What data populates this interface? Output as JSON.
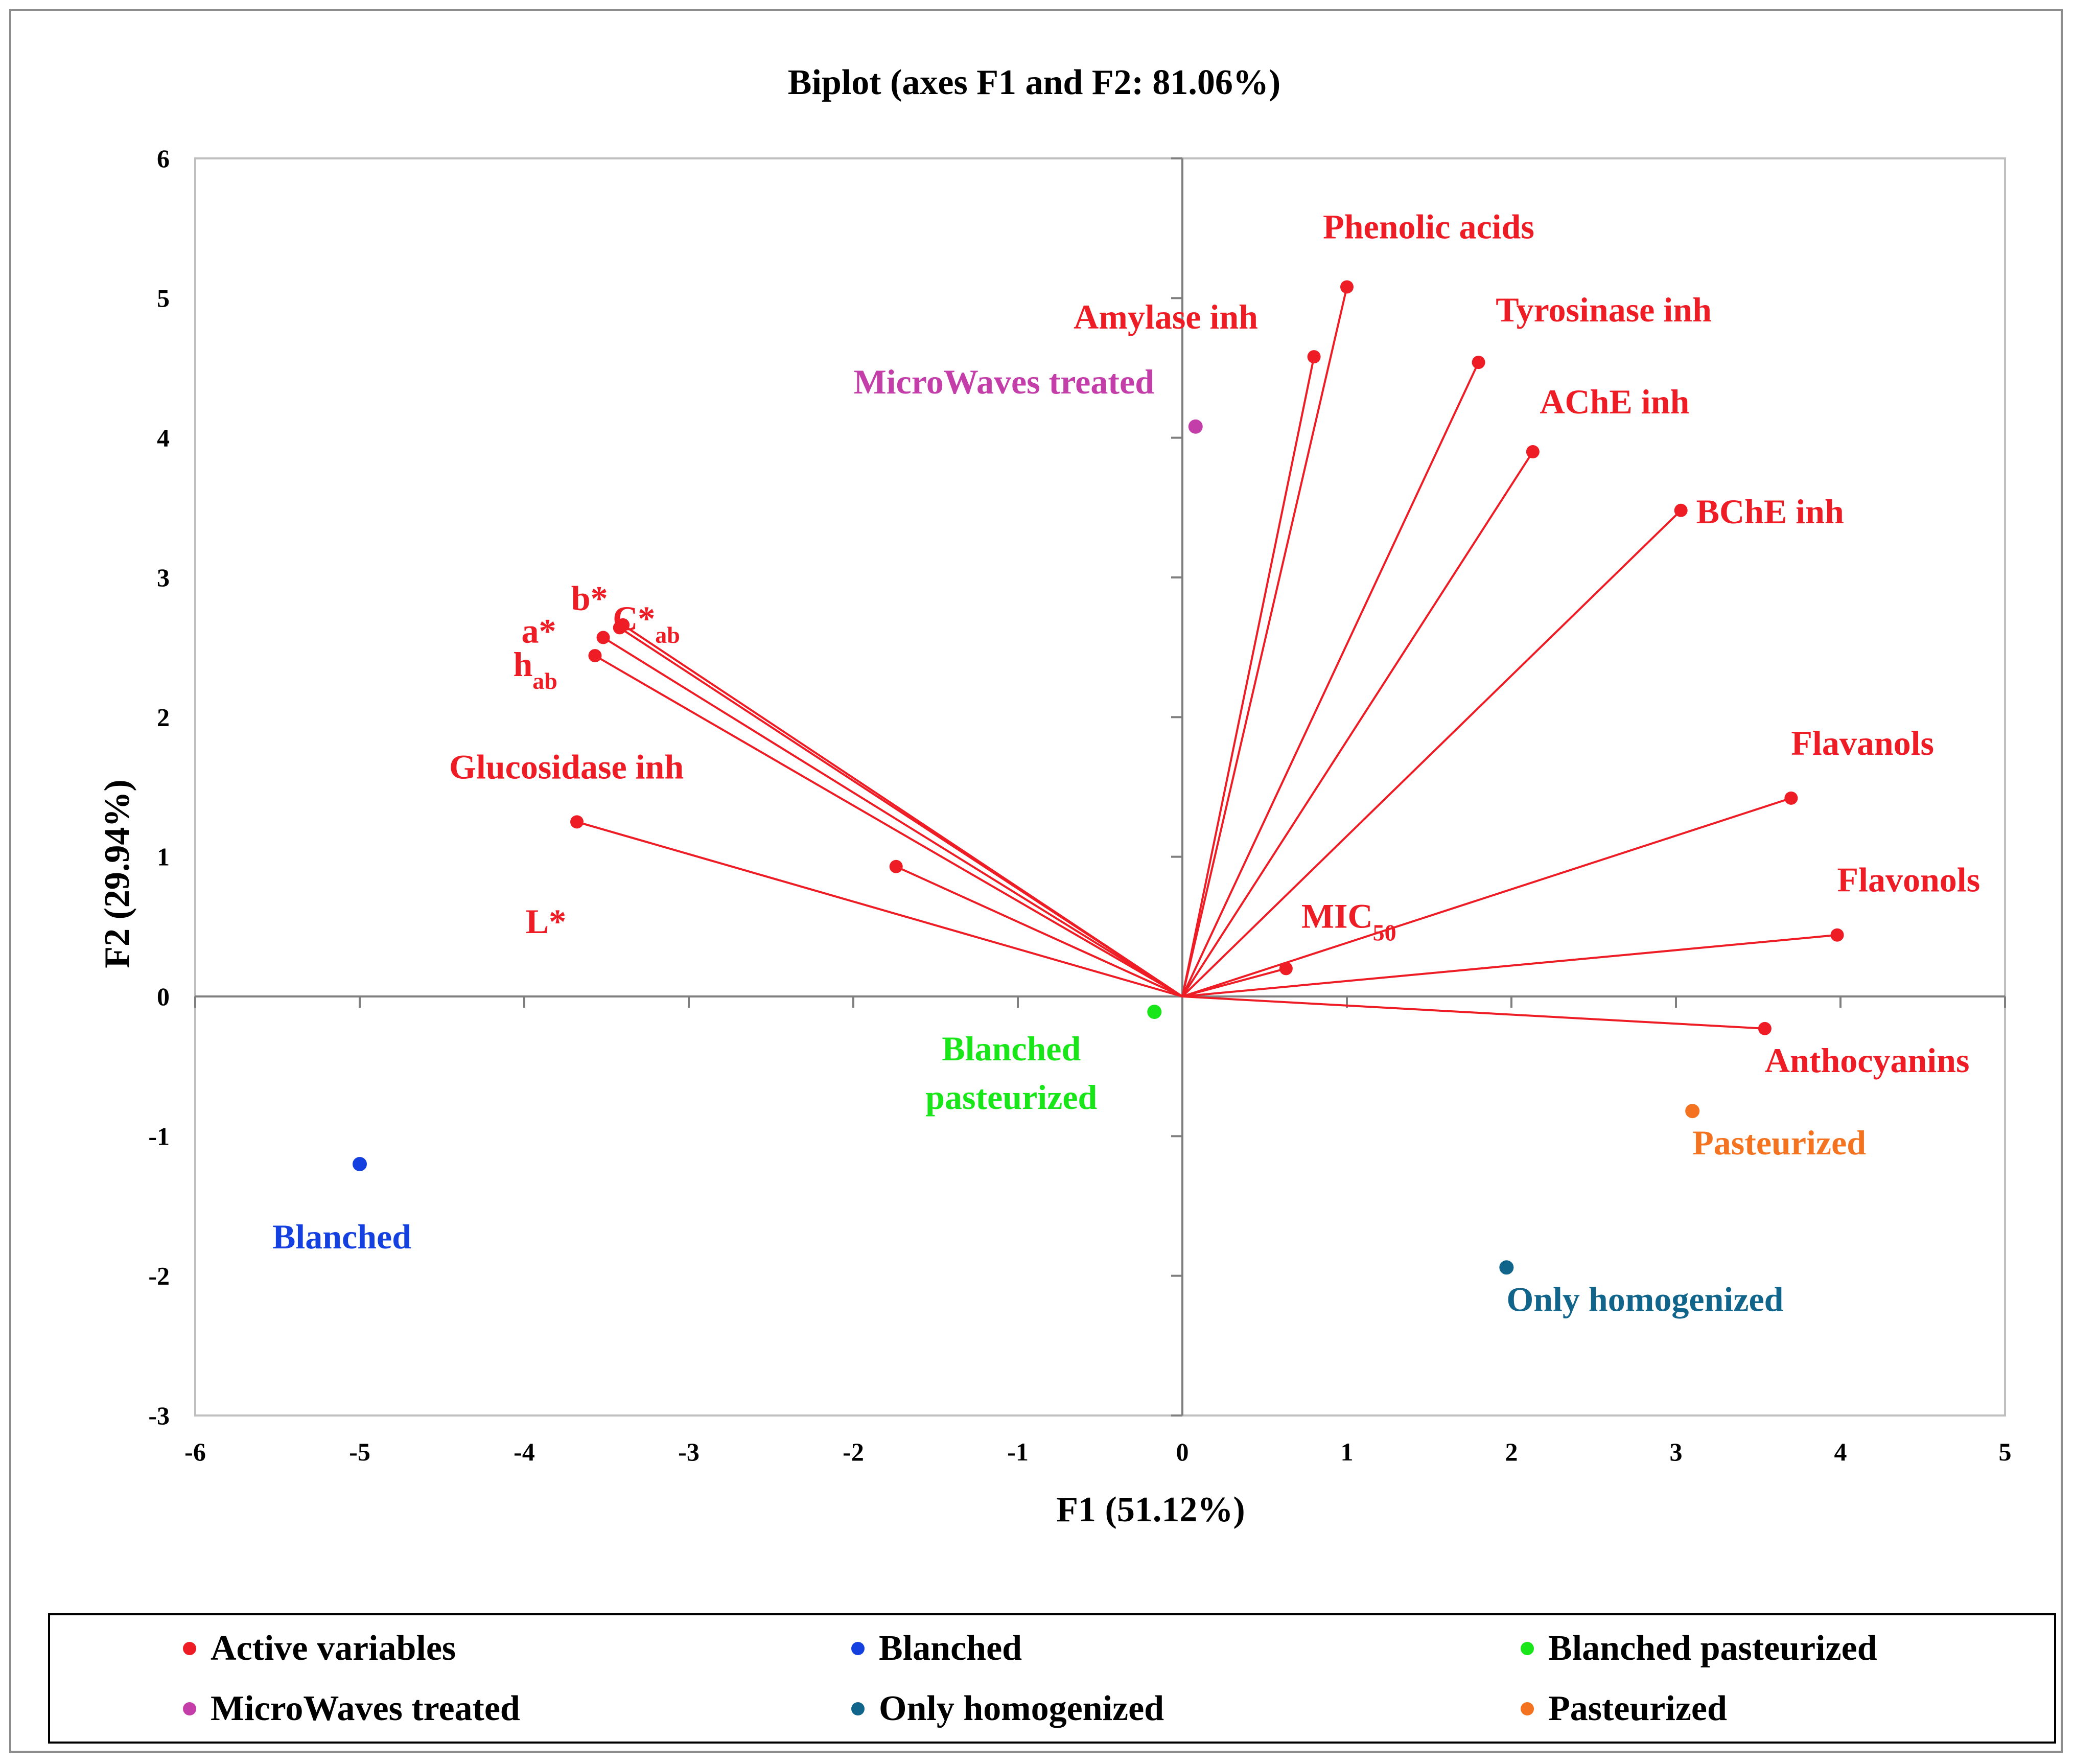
{
  "chart_data": {
    "type": "scatter",
    "title": "Biplot (axes F1 and F2: 81.06%)",
    "xlabel": "F1 (51.12%)",
    "ylabel": "F2 (29.94%)",
    "xlim": [
      -6,
      5
    ],
    "ylim": [
      -3,
      6
    ],
    "x_ticks": [
      "-6",
      "-5",
      "-4",
      "-3",
      "-2",
      "-1",
      "0",
      "1",
      "2",
      "3",
      "4",
      "5"
    ],
    "y_ticks": [
      "-3",
      "-2",
      "-1",
      "0",
      "1",
      "2",
      "3",
      "4",
      "5",
      "6"
    ],
    "variables": [
      {
        "name": "Phenolic acids",
        "x": 1.0,
        "y": 5.08
      },
      {
        "name": "Amylase inh",
        "x": 0.8,
        "y": 4.58
      },
      {
        "name": "Tyrosinase inh",
        "x": 1.8,
        "y": 4.54
      },
      {
        "name": "AChE inh",
        "x": 2.13,
        "y": 3.9
      },
      {
        "name": "BChE inh",
        "x": 3.03,
        "y": 3.48
      },
      {
        "name": "C*",
        "sub": "ab",
        "x": -3.4,
        "y": 2.66
      },
      {
        "name": "b*",
        "x": -3.42,
        "y": 2.64
      },
      {
        "name": "a*",
        "x": -3.52,
        "y": 2.57
      },
      {
        "name": "h",
        "sub": "ab",
        "x": -3.57,
        "y": 2.44
      },
      {
        "name": "Glucosidase inh",
        "x": -3.68,
        "y": 1.25
      },
      {
        "name": "L*",
        "x": -1.74,
        "y": 0.93
      },
      {
        "name": "Flavanols",
        "x": 3.7,
        "y": 1.42
      },
      {
        "name": "Flavonols",
        "x": 3.98,
        "y": 0.44
      },
      {
        "name": "MIC",
        "sub": "50",
        "x": 0.63,
        "y": 0.2
      },
      {
        "name": "Anthocyanins",
        "x": 3.54,
        "y": -0.23
      }
    ],
    "observations": [
      {
        "name": "MicroWaves treated",
        "x": 0.08,
        "y": 4.08,
        "color": "#c33ea8"
      },
      {
        "name": "Blanched pasteurized",
        "x": -0.17,
        "y": -0.11,
        "color": "#19e619"
      },
      {
        "name": "Blanched",
        "x": -5.0,
        "y": -1.2,
        "color": "#1540e0"
      },
      {
        "name": "Pasteurized",
        "x": 3.1,
        "y": -0.82,
        "color": "#f47321"
      },
      {
        "name": "Only homogenized",
        "x": 1.97,
        "y": -1.94,
        "color": "#11648a"
      }
    ],
    "variable_color": "#ee1c25"
  },
  "legend": {
    "items": [
      {
        "label": "Active variables",
        "color": "#ee1c25"
      },
      {
        "label": "Blanched",
        "color": "#1540e0"
      },
      {
        "label": "Blanched pasteurized",
        "color": "#19e619"
      },
      {
        "label": "MicroWaves treated",
        "color": "#c33ea8"
      },
      {
        "label": "Only homogenized",
        "color": "#11648a"
      },
      {
        "label": "Pasteurized",
        "color": "#f47321"
      }
    ]
  }
}
